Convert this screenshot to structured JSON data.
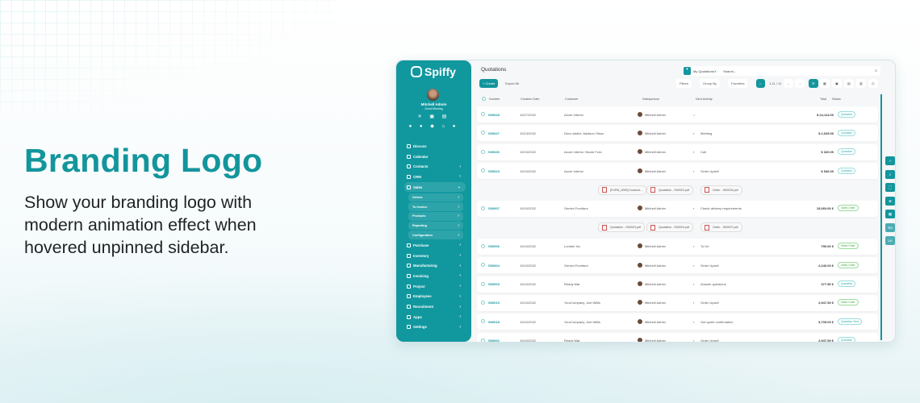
{
  "hero": {
    "title": "Branding Logo",
    "text": "Show your branding logo with modern animation effect when hovered unpinned sidebar."
  },
  "colors": {
    "accent": "#13959c",
    "sidebar": "#11989f"
  },
  "sidebar": {
    "brand": "Spiffy",
    "user": "Mitchell Admin",
    "greeting": "Good Morning",
    "items": [
      {
        "label": "Discuss"
      },
      {
        "label": "Calendar"
      },
      {
        "label": "Contacts",
        "chevron": true
      },
      {
        "label": "CRM",
        "chevron": true
      },
      {
        "label": "Sales",
        "chevron": true,
        "open": true
      },
      {
        "label": "Purchase"
      },
      {
        "label": "Inventory"
      },
      {
        "label": "Manufacturing"
      },
      {
        "label": "Invoicing"
      },
      {
        "label": "Project"
      },
      {
        "label": "Employees"
      },
      {
        "label": "Recruitment"
      },
      {
        "label": "Apps"
      },
      {
        "label": "Settings"
      }
    ],
    "sales_sub": [
      "Orders",
      "To Invoice",
      "Products",
      "Reporting",
      "Configuration"
    ]
  },
  "main": {
    "title": "Quotations",
    "filter_chip": "My Quotations",
    "search_placeholder": "Search...",
    "create": "+ Create",
    "export": "Export All",
    "filters": "Filters",
    "group_by": "Group By",
    "favorites": "Favorites",
    "pager": "1-11 / 11",
    "columns": [
      "Number",
      "Creation Date",
      "Customer",
      "Salesperson",
      "Next Activity",
      "Total",
      "Status"
    ],
    "rows": [
      {
        "number": "S00028",
        "date": "10/17/2022",
        "customer": "Azure Interior",
        "sales": "Mitchell Admin",
        "activity": "",
        "total": "$ 24,114.00",
        "status": "Quotation"
      },
      {
        "number": "S00027",
        "date": "10/13/2022",
        "customer": "Deco Addict, Addison Olson",
        "sales": "Mitchell Admin",
        "activity": "Meeting",
        "total": "$ 2,025.00",
        "status": "Quotation"
      },
      {
        "number": "S00026",
        "date": "10/13/2022",
        "customer": "Azure Interior, Nicole Ford",
        "sales": "Mitchell Admin",
        "activity": "Call",
        "total": "$ 320.00",
        "status": "Quotation"
      },
      {
        "number": "S00023",
        "date": "10/10/2022",
        "customer": "Azure Interior",
        "sales": "Mitchell Admin",
        "activity": "Order Upsell",
        "total": "$ 546.00",
        "status": "Quotation"
      },
      {
        "number": "S00007",
        "date": "10/10/2022",
        "customer": "Gemini Furniture",
        "sales": "Mitchell Admin",
        "activity": "Check delivery requirements",
        "total": "15,060.00 €",
        "status": "Sales Order"
      },
      {
        "number": "S00006",
        "date": "10/10/2022",
        "customer": "Lumber Inc",
        "sales": "Mitchell Admin",
        "activity": "To Do",
        "total": "750.00 €",
        "status": "Sales Order"
      },
      {
        "number": "S00004",
        "date": "10/10/2022",
        "customer": "Gemini Furniture",
        "sales": "Mitchell Admin",
        "activity": "Order Upsell",
        "total": "2,240.00 €",
        "status": "Sales Order"
      },
      {
        "number": "S00003",
        "date": "10/10/2022",
        "customer": "Ready Mat",
        "sales": "Mitchell Admin",
        "activity": "Answer questions",
        "total": "377.50 €",
        "status": "Quotation"
      },
      {
        "number": "S00019",
        "date": "10/10/2022",
        "customer": "YourCompany, Joel Willis",
        "sales": "Mitchell Admin",
        "activity": "Order Upsell",
        "total": "2,947.50 €",
        "status": "Sales Order"
      },
      {
        "number": "S00018",
        "date": "10/10/2022",
        "customer": "YourCompany, Joel Willis",
        "sales": "Mitchell Admin",
        "activity": "Get quote confirmation",
        "total": "9,705.00 €",
        "status": "Quotation Sent"
      },
      {
        "number": "S00002",
        "date": "10/10/2022",
        "customer": "Ready Mat",
        "sales": "Mitchell Admin",
        "activity": "Order Upsell",
        "total": "2,947.50 €",
        "status": "Quotation"
      }
    ],
    "attachments_a": [
      "[FURN_0096] Customi...",
      "Quotation - S00023.pdf",
      "Order - S00015.pdf"
    ],
    "attachments_b": [
      "Quotation - S00023.pdf",
      "Quotation - S00010.pdf",
      "Order - S00007.pdf"
    ]
  },
  "fabs": [
    "☆",
    "⌕",
    "⛶",
    "⊕",
    "▦",
    "Sa",
    "Le"
  ]
}
